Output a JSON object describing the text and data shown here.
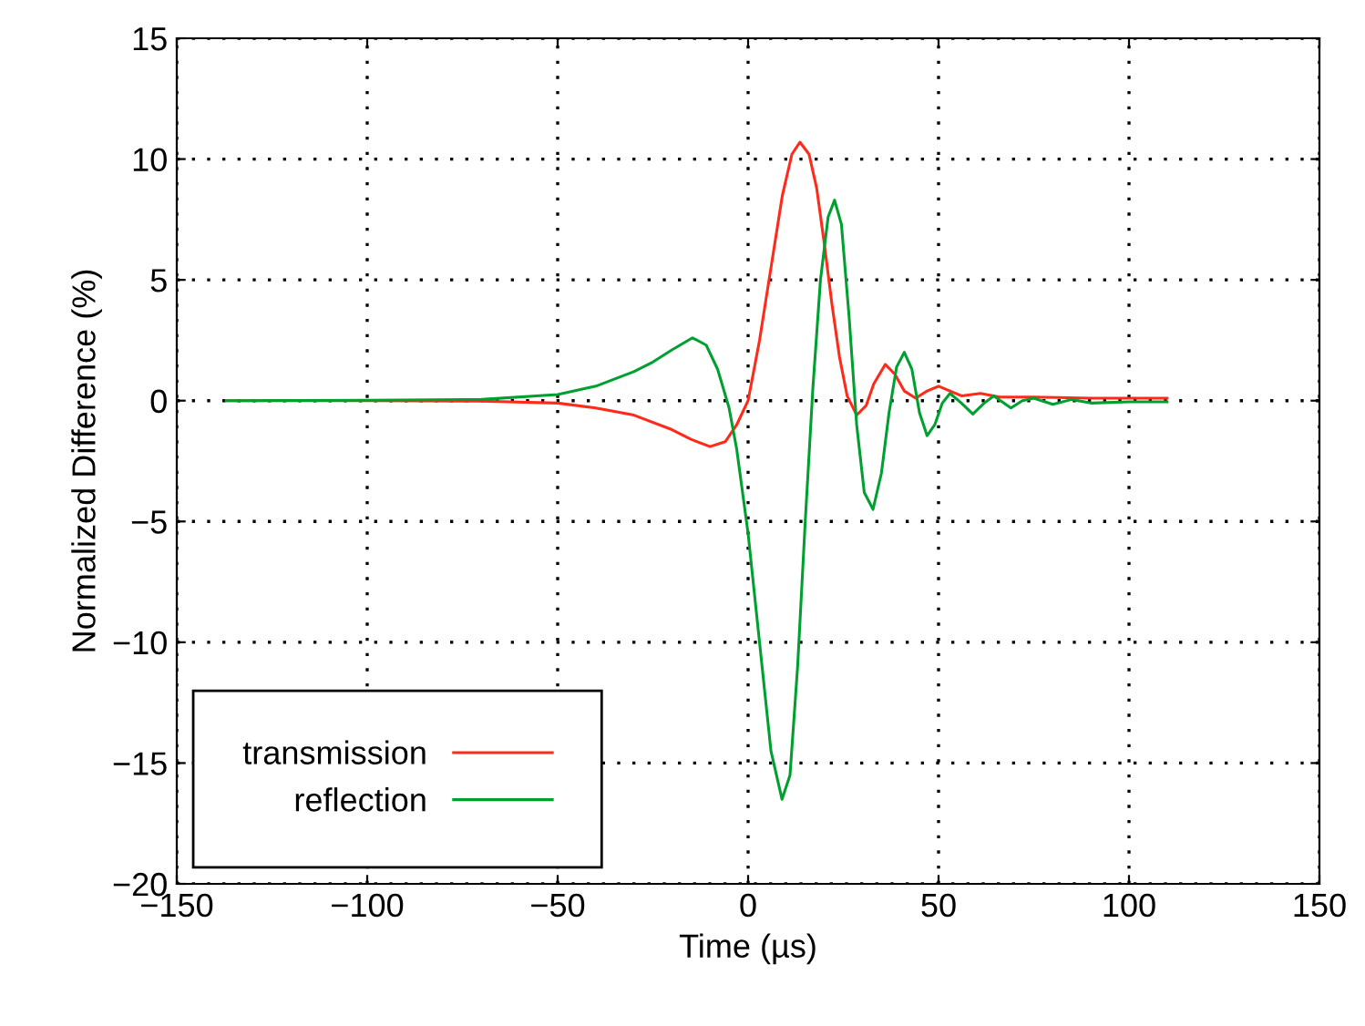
{
  "chart_data": {
    "type": "line",
    "xlabel": "Time (µs)",
    "ylabel": "Normalized Difference (%)",
    "xlim": [
      -150,
      150
    ],
    "xticks": [
      -150,
      -100,
      -50,
      0,
      50,
      100,
      150
    ],
    "ylim": [
      -20,
      15
    ],
    "yticks": [
      -20,
      -15,
      -10,
      -5,
      0,
      5,
      10,
      15
    ],
    "grid": true,
    "legend": "bottom left",
    "marker": "none",
    "line_style": "solid",
    "series": [
      {
        "name": "transmission",
        "color": "#ff2a1a",
        "x": [
          -137,
          -100,
          -70,
          -50,
          -40,
          -30,
          -20,
          -15,
          -10,
          -6,
          -3,
          0,
          3,
          6,
          9,
          11.5,
          13.6,
          16,
          18,
          20,
          22,
          24,
          26,
          28.5,
          31,
          33,
          36,
          38.5,
          41,
          44,
          47,
          50,
          53,
          56,
          61,
          66,
          75,
          90,
          110
        ],
        "values": [
          0,
          0,
          -0.02,
          -0.1,
          -0.3,
          -0.6,
          -1.2,
          -1.6,
          -1.9,
          -1.7,
          -1.0,
          0,
          2.5,
          5.5,
          8.5,
          10.2,
          10.7,
          10.2,
          8.8,
          6.5,
          4.0,
          1.8,
          0.2,
          -0.6,
          -0.2,
          0.7,
          1.5,
          1.1,
          0.4,
          0.1,
          0.4,
          0.6,
          0.4,
          0.2,
          0.3,
          0.15,
          0.15,
          0.1,
          0.1
        ]
      },
      {
        "name": "reflection",
        "color": "#00a030",
        "x": [
          -137,
          -100,
          -70,
          -50,
          -40,
          -30,
          -25,
          -20,
          -14.6,
          -11,
          -8,
          -5,
          -3,
          0,
          3,
          6,
          8.9,
          11,
          13,
          15,
          17,
          19,
          21,
          22.7,
          24.5,
          26.5,
          28.5,
          30.5,
          32.8,
          35,
          37,
          39,
          41,
          43,
          45,
          47,
          49,
          51,
          53,
          56,
          59,
          62,
          64.5,
          69,
          72,
          75,
          80,
          85,
          90,
          100,
          110
        ],
        "values": [
          0,
          0.02,
          0.05,
          0.25,
          0.6,
          1.2,
          1.6,
          2.1,
          2.6,
          2.3,
          1.3,
          -0.3,
          -2,
          -5.5,
          -10,
          -14.5,
          -16.5,
          -15.5,
          -11,
          -5,
          0.5,
          5,
          7.6,
          8.3,
          7.3,
          3.5,
          -1,
          -3.8,
          -4.5,
          -3,
          -0.5,
          1.4,
          2.0,
          1.3,
          -0.5,
          -1.45,
          -1.0,
          -0.1,
          0.3,
          -0.1,
          -0.55,
          -0.1,
          0.2,
          -0.3,
          0,
          0.1,
          -0.15,
          0.05,
          -0.1,
          -0.05,
          -0.05
        ]
      }
    ]
  }
}
